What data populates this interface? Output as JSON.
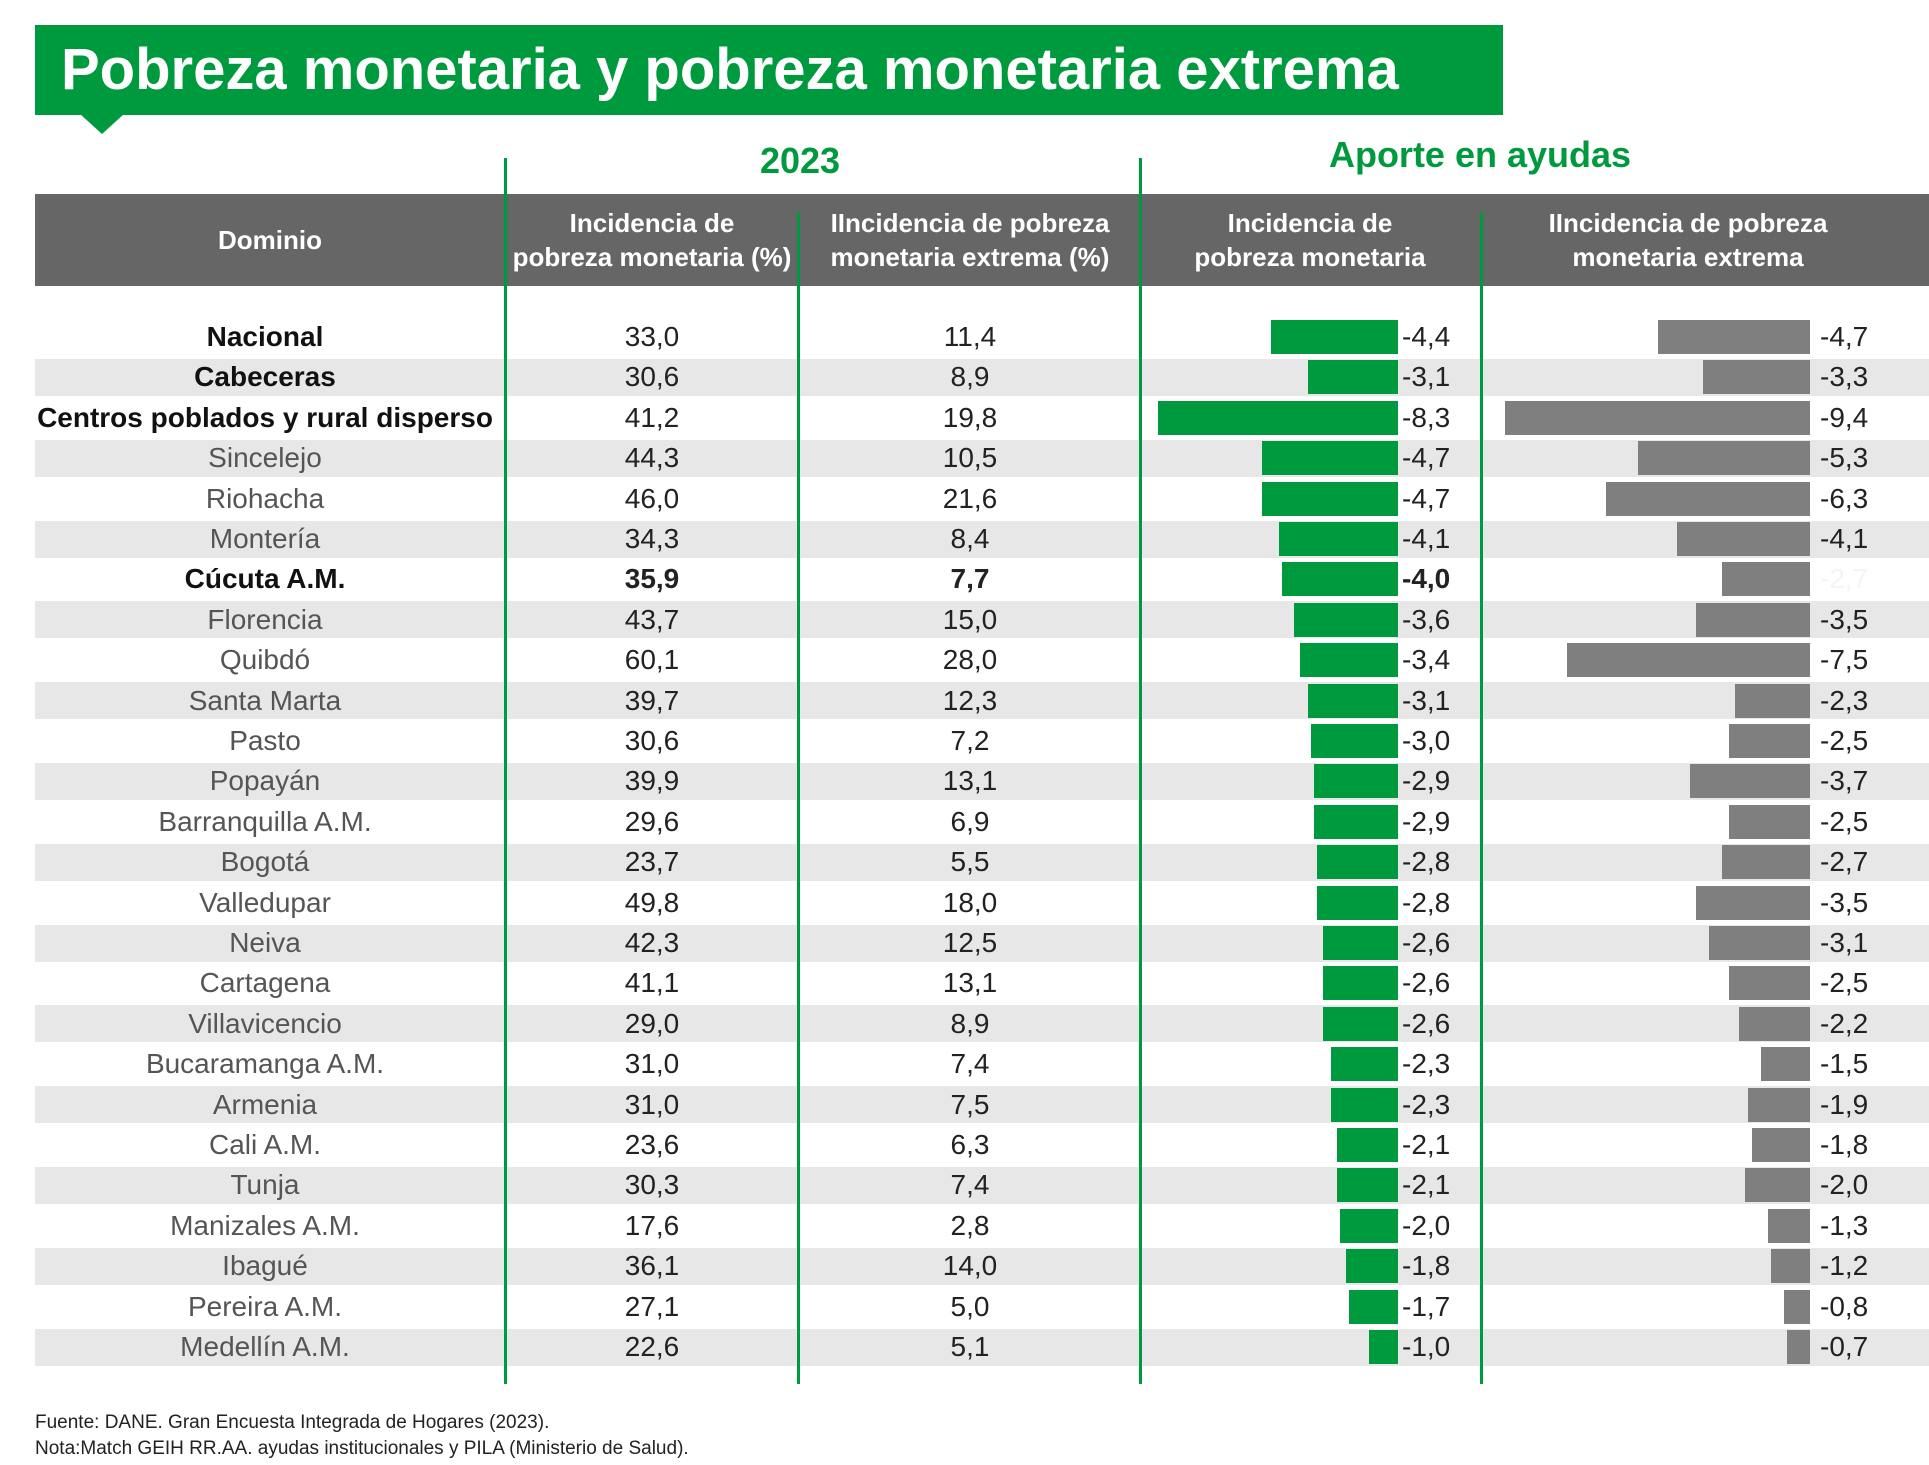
{
  "title": "Pobreza monetaria y pobreza monetaria extrema",
  "group_headers": {
    "year": "2023",
    "aporte": "Aporte en ayudas"
  },
  "columns": {
    "dominio": "Dominio",
    "col1": [
      "Incidencia de",
      "pobreza monetaria (%)"
    ],
    "col2": [
      "IIncidencia de pobreza",
      "monetaria extrema (%)"
    ],
    "col3": [
      "Incidencia de",
      "pobreza monetaria"
    ],
    "col4": [
      "IIncidencia de pobreza",
      "monetaria extrema"
    ]
  },
  "colors": {
    "green": "#009a3e",
    "gray_bar": "#7f7f7f",
    "header_bg": "#666666",
    "stripe": "#e7e7e7"
  },
  "chart_data": {
    "type": "bar",
    "title": "Pobreza monetaria y pobreza monetaria extrema",
    "categories": [
      "Nacional",
      "Cabeceras",
      "Centros poblados y rural disperso",
      "Sincelejo",
      "Riohacha",
      "Montería",
      "Cúcuta A.M.",
      "Florencia",
      "Quibdó",
      "Santa Marta",
      "Pasto",
      "Popayán",
      "Barranquilla A.M.",
      "Bogotá",
      "Valledupar",
      "Neiva",
      "Cartagena",
      "Villavicencio",
      "Bucaramanga A.M.",
      "Armenia",
      "Cali A.M.",
      "Tunja",
      "Manizales A.M.",
      "Ibagué",
      "Pereira A.M.",
      "Medellín A.M."
    ],
    "bold_rows": [
      0,
      1,
      2,
      6
    ],
    "faint_extreme_label_row": 6,
    "table": [
      {
        "name": "Incidencia de pobreza monetaria (%)",
        "values": [
          "33,0",
          "30,6",
          "41,2",
          "44,3",
          "46,0",
          "34,3",
          "35,9",
          "43,7",
          "60,1",
          "39,7",
          "30,6",
          "39,9",
          "29,6",
          "23,7",
          "49,8",
          "42,3",
          "41,1",
          "29,0",
          "31,0",
          "31,0",
          "23,6",
          "30,3",
          "17,6",
          "36,1",
          "27,1",
          "22,6"
        ]
      },
      {
        "name": "IIncidencia de pobreza monetaria extrema (%)",
        "values": [
          "11,4",
          "8,9",
          "19,8",
          "10,5",
          "21,6",
          "8,4",
          "7,7",
          "15,0",
          "28,0",
          "12,3",
          "7,2",
          "13,1",
          "6,9",
          "5,5",
          "18,0",
          "12,5",
          "13,1",
          "8,9",
          "7,4",
          "7,5",
          "6,3",
          "7,4",
          "2,8",
          "14,0",
          "5,0",
          "5,1"
        ]
      }
    ],
    "series": [
      {
        "name": "Aporte en ayudas - Incidencia de pobreza monetaria",
        "color": "#009a3e",
        "values": [
          -4.4,
          -3.1,
          -8.3,
          -4.7,
          -4.7,
          -4.1,
          -4.0,
          -3.6,
          -3.4,
          -3.1,
          -3.0,
          -2.9,
          -2.9,
          -2.8,
          -2.8,
          -2.6,
          -2.6,
          -2.6,
          -2.3,
          -2.3,
          -2.1,
          -2.1,
          -2.0,
          -1.8,
          -1.7,
          -1.0
        ],
        "labels": [
          "-4,4",
          "-3,1",
          "-8,3",
          "-4,7",
          "-4,7",
          "-4,1",
          "-4,0",
          "-3,6",
          "-3,4",
          "-3,1",
          "-3,0",
          "-2,9",
          "-2,9",
          "-2,8",
          "-2,8",
          "-2,6",
          "-2,6",
          "-2,6",
          "-2,3",
          "-2,3",
          "-2,1",
          "-2,1",
          "-2,0",
          "-1,8",
          "-1,7",
          "-1,0"
        ]
      },
      {
        "name": "Aporte en ayudas - Incidencia de pobreza monetaria extrema",
        "color": "#7f7f7f",
        "values": [
          -4.7,
          -3.3,
          -9.4,
          -5.3,
          -6.3,
          -4.1,
          -2.7,
          -3.5,
          -7.5,
          -2.3,
          -2.5,
          -3.7,
          -2.5,
          -2.7,
          -3.5,
          -3.1,
          -2.5,
          -2.2,
          -1.5,
          -1.9,
          -1.8,
          -2.0,
          -1.3,
          -1.2,
          -0.8,
          -0.7
        ],
        "labels": [
          "-4,7",
          "-3,3",
          "-9,4",
          "-5,3",
          "-6,3",
          "-4,1",
          "-2,7",
          "-3,5",
          "-7,5",
          "-2,3",
          "-2,5",
          "-3,7",
          "-2,5",
          "-2,7",
          "-3,5",
          "-3,1",
          "-2,5",
          "-2,2",
          "-1,5",
          "-1,9",
          "-1,8",
          "-2,0",
          "-1,3",
          "-1,2",
          "-0,8",
          "-0,7"
        ]
      }
    ],
    "xlim": [
      -9.4,
      0
    ],
    "legend": "none"
  },
  "footer": {
    "fuente": "Fuente: DANE. Gran Encuesta Integrada de Hogares (2023).",
    "nota": "Nota:Match GEIH RR.AA. ayudas institucionales y PILA (Ministerio de Salud)."
  }
}
